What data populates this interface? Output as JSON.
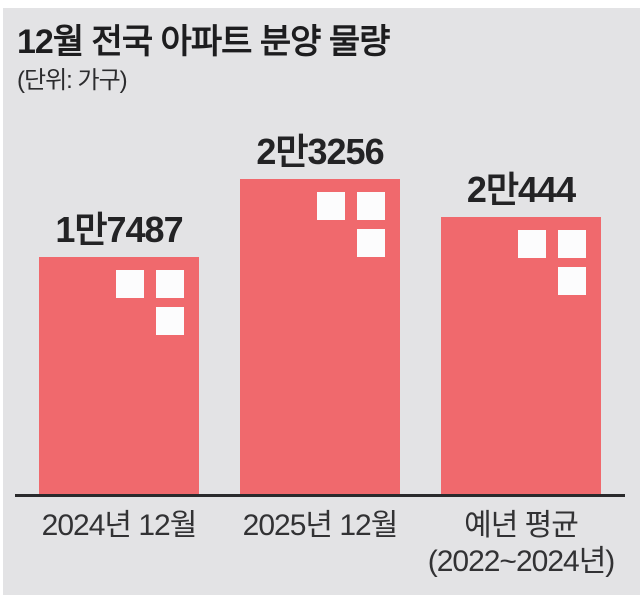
{
  "title": "12월 전국 아파트 분양 물량",
  "subtitle": "(단위: 가구)",
  "chart_data": {
    "type": "bar",
    "title": "12월 전국 아파트 분양 물량",
    "unit_label": "(단위: 가구)",
    "categories": [
      "2024년 12월",
      "2025년 12월",
      "예년 평균 (2022~2024년)"
    ],
    "category_lines": [
      [
        "2024년 12월"
      ],
      [
        "2025년 12월"
      ],
      [
        "예년 평균",
        "(2022~2024년)"
      ]
    ],
    "values": [
      17487,
      23256,
      20444
    ],
    "value_labels": [
      "1만7487",
      "2만3256",
      "2만444"
    ],
    "ylim": [
      0,
      24000
    ],
    "grid": false,
    "legend": "none",
    "orientation": "vertical",
    "colors": {
      "bar": "#f0696d",
      "window": "#fcfcfd",
      "background": "#e3e3e5",
      "axis": "#2a2a2c",
      "text": "#232325"
    }
  }
}
